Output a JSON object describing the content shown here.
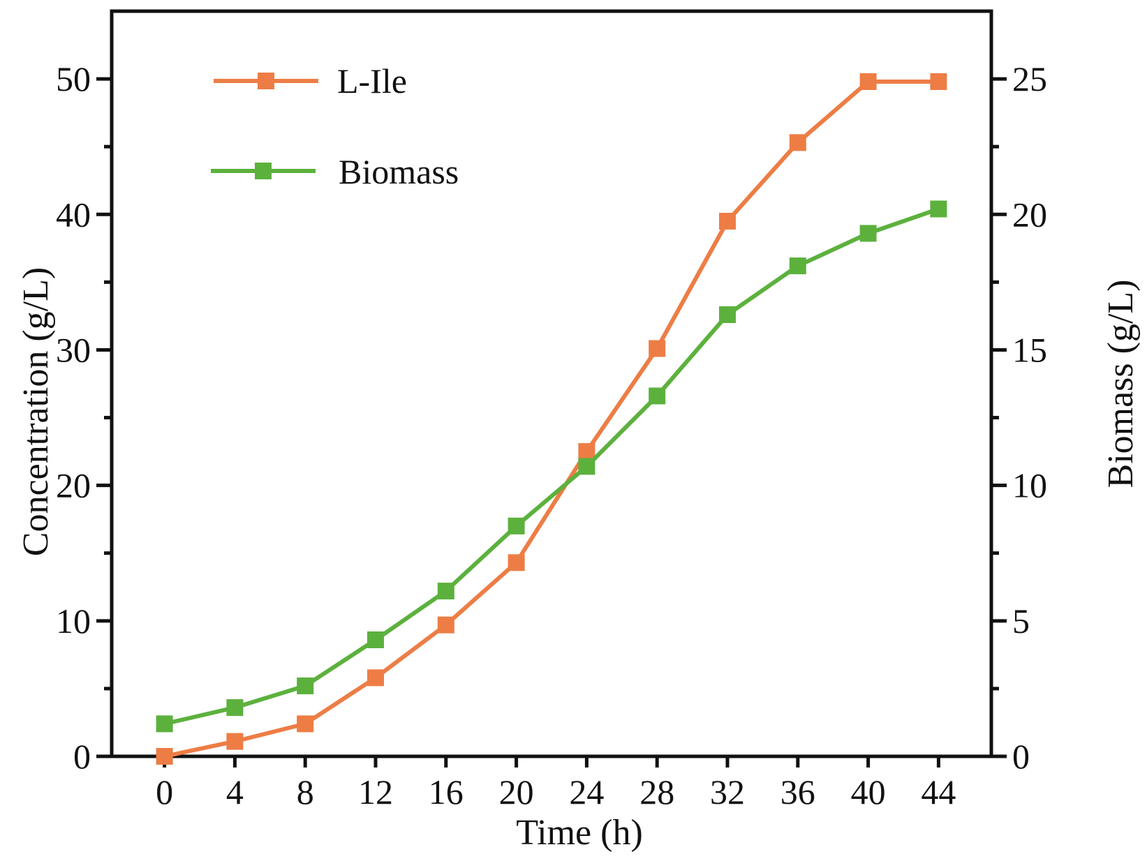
{
  "chart_data": {
    "type": "line",
    "xlabel": "Time (h)",
    "ylabel_left": "Concentration (g/L)",
    "ylabel_right": "Biomass (g/L)",
    "x": [
      0,
      4,
      8,
      12,
      16,
      20,
      24,
      28,
      32,
      36,
      40,
      44
    ],
    "xlim": [
      -3,
      47
    ],
    "x_ticks": [
      "0",
      "4",
      "8",
      "12",
      "16",
      "20",
      "24",
      "28",
      "32",
      "36",
      "40",
      "44"
    ],
    "ylim_left": [
      0,
      55
    ],
    "ylim_right": [
      0,
      27.5
    ],
    "y_ticks_left": [
      "0",
      "10",
      "20",
      "30",
      "40",
      "50"
    ],
    "y_ticks_right": [
      "0",
      "5",
      "10",
      "15",
      "20",
      "25"
    ],
    "legend_position": "top-left",
    "series": [
      {
        "name": "L-Ile",
        "axis": "left",
        "color": "#ED7D45",
        "values": [
          0,
          1.1,
          2.4,
          5.8,
          9.7,
          14.3,
          22.5,
          30.1,
          39.5,
          45.3,
          49.8,
          49.8
        ]
      },
      {
        "name": "Biomass",
        "axis": "right",
        "color": "#5CB13D",
        "values": [
          1.2,
          1.8,
          2.6,
          4.3,
          6.1,
          8.5,
          10.7,
          13.3,
          16.3,
          18.1,
          19.3,
          20.2
        ]
      }
    ]
  }
}
